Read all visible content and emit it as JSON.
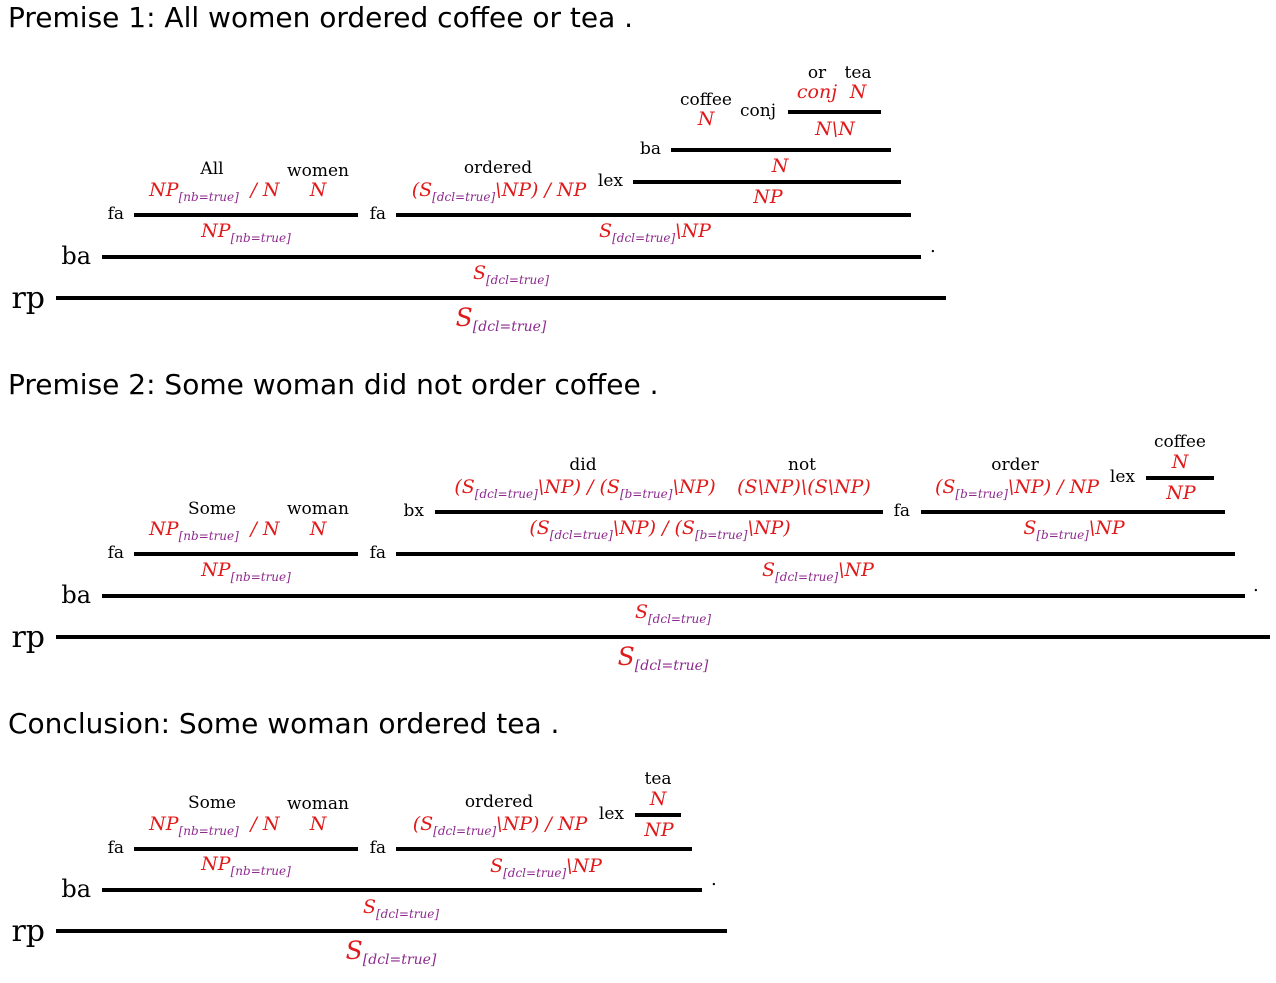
{
  "premise1": {
    "heading": "Premise 1: All women ordered coffee or tea .",
    "words": {
      "all": "All",
      "women": "women",
      "ordered": "ordered",
      "coffee": "coffee",
      "or": "or",
      "tea": "tea"
    },
    "rules": {
      "conj": "conj",
      "ba_top": "ba",
      "lex": "lex",
      "fa1": "fa",
      "fa2": "fa",
      "ba": "ba",
      "rp": "rp"
    },
    "period": "."
  },
  "premise2": {
    "heading": "Premise 2: Some woman did not order coffee .",
    "words": {
      "some": "Some",
      "woman": "woman",
      "did": "did",
      "not": "not",
      "order": "order",
      "coffee": "coffee"
    },
    "rules": {
      "lex": "lex",
      "bx": "bx",
      "fa_vp": "fa",
      "fa1": "fa",
      "fa2": "fa",
      "ba": "ba",
      "rp": "rp"
    },
    "period": "."
  },
  "conclusion": {
    "heading": "Conclusion: Some woman ordered tea .",
    "words": {
      "some": "Some",
      "woman": "woman",
      "ordered": "ordered",
      "tea": "tea"
    },
    "rules": {
      "lex": "lex",
      "fa1": "fa",
      "fa2": "fa",
      "ba": "ba",
      "rp": "rp"
    },
    "period": "."
  },
  "features": {
    "nb": "[nb=true]",
    "dcl": "[dcl=true]",
    "b": "[b=true]"
  },
  "colors": {
    "category": "#e0191a",
    "feature": "#8e2a8e",
    "line": "#000000"
  }
}
